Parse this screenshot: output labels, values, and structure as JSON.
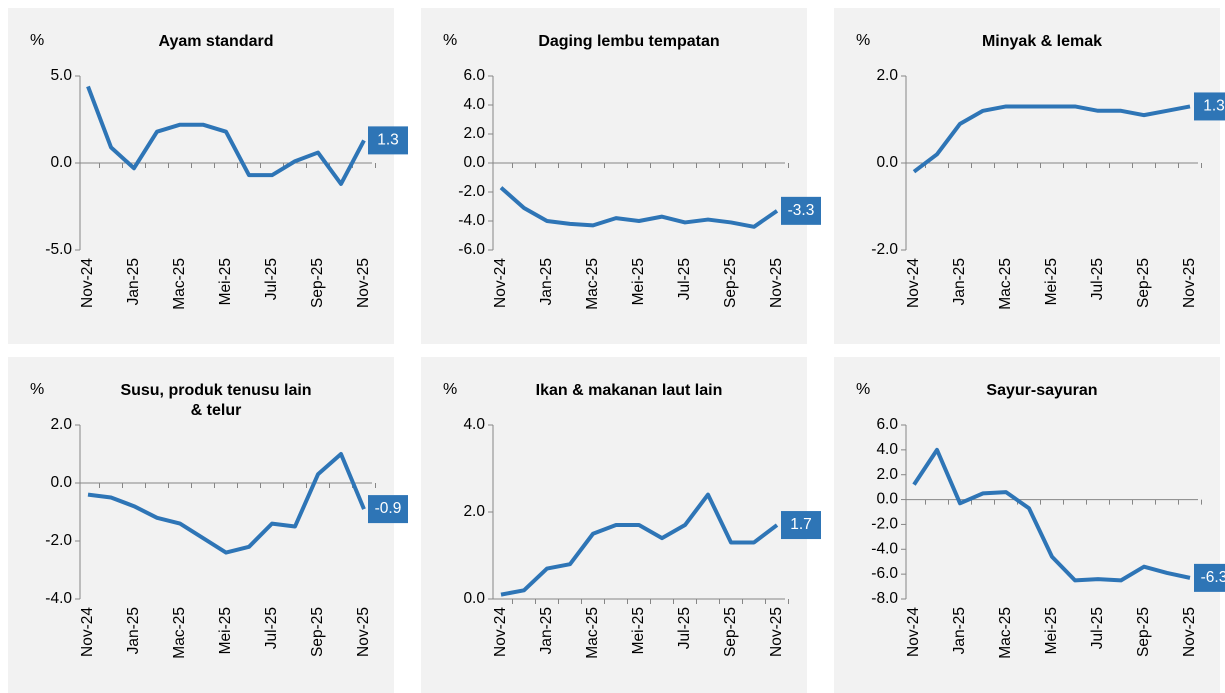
{
  "chart_data": [
    {
      "type": "line",
      "title": "Ayam standard",
      "y_unit": "%",
      "categories": [
        "Nov-24",
        null,
        "Jan-25",
        null,
        "Mac-25",
        null,
        "Mei-25",
        null,
        "Jul-25",
        null,
        "Sep-25",
        null,
        "Nov-25"
      ],
      "values": [
        4.4,
        0.9,
        -0.3,
        1.8,
        2.2,
        2.2,
        1.8,
        -0.7,
        -0.7,
        0.1,
        0.6,
        -1.2,
        1.3
      ],
      "color": "#2e75b6",
      "ylim": [
        -5,
        5
      ],
      "yticks": [
        {
          "value": -5,
          "label": "-5.0"
        },
        {
          "value": 0,
          "label": "0.0"
        },
        {
          "value": 5,
          "label": "5.0"
        }
      ]
    },
    {
      "type": "line",
      "title": "Daging lembu tempatan",
      "y_unit": "%",
      "categories": [
        "Nov-24",
        null,
        "Jan-25",
        null,
        "Mac-25",
        null,
        "Mei-25",
        null,
        "Jul-25",
        null,
        "Sep-25",
        null,
        "Nov-25"
      ],
      "values": [
        -1.7,
        -3.1,
        -4.0,
        -4.2,
        -4.3,
        -3.8,
        -4.0,
        -3.7,
        -4.1,
        -3.9,
        -4.1,
        -4.4,
        -3.3
      ],
      "color": "#2e75b6",
      "ylim": [
        -6,
        6
      ],
      "yticks": [
        {
          "value": -6,
          "label": "-6.0"
        },
        {
          "value": -4,
          "label": "-4.0"
        },
        {
          "value": -2,
          "label": "-2.0"
        },
        {
          "value": 0,
          "label": "0.0"
        },
        {
          "value": 2,
          "label": "2.0"
        },
        {
          "value": 4,
          "label": "4.0"
        },
        {
          "value": 6,
          "label": "6.0"
        }
      ]
    },
    {
      "type": "line",
      "title": "Minyak & lemak",
      "y_unit": "%",
      "categories": [
        "Nov-24",
        null,
        "Jan-25",
        null,
        "Mac-25",
        null,
        "Mei-25",
        null,
        "Jul-25",
        null,
        "Sep-25",
        null,
        "Nov-25"
      ],
      "values": [
        -0.2,
        0.2,
        0.9,
        1.2,
        1.3,
        1.3,
        1.3,
        1.3,
        1.2,
        1.2,
        1.1,
        1.2,
        1.3
      ],
      "color": "#2e75b6",
      "ylim": [
        -2,
        2
      ],
      "yticks": [
        {
          "value": -2,
          "label": "-2.0"
        },
        {
          "value": 0,
          "label": "0.0"
        },
        {
          "value": 2,
          "label": "2.0"
        }
      ]
    },
    {
      "type": "line",
      "title": "Susu, produk tenusu lain & telur",
      "y_unit": "%",
      "categories": [
        "Nov-24",
        null,
        "Jan-25",
        null,
        "Mac-25",
        null,
        "Mei-25",
        null,
        "Jul-25",
        null,
        "Sep-25",
        null,
        "Nov-25"
      ],
      "values": [
        -0.4,
        -0.5,
        -0.8,
        -1.2,
        -1.4,
        -1.9,
        -2.4,
        -2.2,
        -1.4,
        -1.5,
        0.3,
        1.0,
        -0.9
      ],
      "color": "#2e75b6",
      "ylim": [
        -4,
        2
      ],
      "yticks": [
        {
          "value": -4,
          "label": "-4.0"
        },
        {
          "value": -2,
          "label": "-2.0"
        },
        {
          "value": 0,
          "label": "0.0"
        },
        {
          "value": 2,
          "label": "2.0"
        }
      ]
    },
    {
      "type": "line",
      "title": "Ikan & makanan laut lain",
      "y_unit": "%",
      "categories": [
        "Nov-24",
        null,
        "Jan-25",
        null,
        "Mac-25",
        null,
        "Mei-25",
        null,
        "Jul-25",
        null,
        "Sep-25",
        null,
        "Nov-25"
      ],
      "values": [
        0.1,
        0.2,
        0.7,
        0.8,
        1.5,
        1.7,
        1.7,
        1.4,
        1.7,
        2.4,
        1.3,
        1.3,
        1.7
      ],
      "color": "#2e75b6",
      "ylim": [
        0,
        4
      ],
      "yticks": [
        {
          "value": 0,
          "label": "0.0"
        },
        {
          "value": 2,
          "label": "2.0"
        },
        {
          "value": 4,
          "label": "4.0"
        }
      ]
    },
    {
      "type": "line",
      "title": "Sayur-sayuran",
      "y_unit": "%",
      "categories": [
        "Nov-24",
        null,
        "Jan-25",
        null,
        "Mac-25",
        null,
        "Mei-25",
        null,
        "Jul-25",
        null,
        "Sep-25",
        null,
        "Nov-25"
      ],
      "values": [
        1.2,
        4.0,
        -0.3,
        0.5,
        0.6,
        -0.7,
        -4.6,
        -6.5,
        -6.4,
        -6.5,
        -5.4,
        -5.9,
        -6.3
      ],
      "color": "#2e75b6",
      "ylim": [
        -8,
        6
      ],
      "yticks": [
        {
          "value": -8,
          "label": "-8.0"
        },
        {
          "value": -6,
          "label": "-6.0"
        },
        {
          "value": -4,
          "label": "-4.0"
        },
        {
          "value": -2,
          "label": "-2.0"
        },
        {
          "value": 0,
          "label": "0.0"
        },
        {
          "value": 2,
          "label": "2.0"
        },
        {
          "value": 4,
          "label": "4.0"
        },
        {
          "value": 6,
          "label": "6.0"
        }
      ]
    }
  ]
}
